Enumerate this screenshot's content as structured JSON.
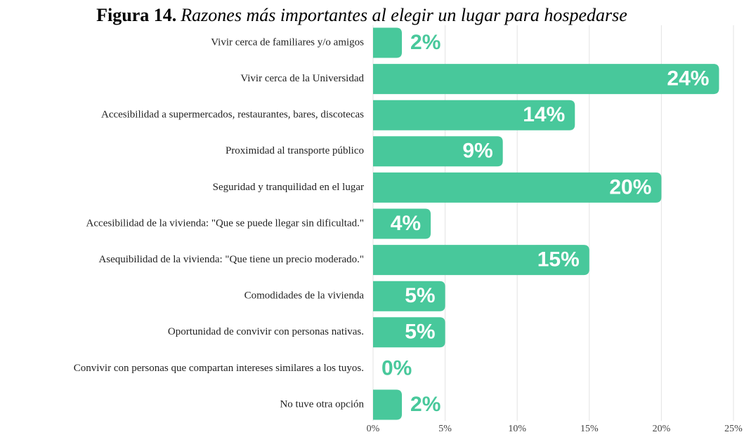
{
  "chart_data": {
    "type": "barh",
    "figure_label": "Figura 14.",
    "title": "Razones más importantes al elegir un lugar para hospedarse",
    "categories": [
      "Vivir cerca de familiares y/o amigos",
      "Vivir cerca de la Universidad",
      "Accesibilidad a supermercados, restaurantes, bares, discotecas",
      "Proximidad al transporte público",
      "Seguridad y tranquilidad en el lugar",
      "Accesibilidad de la vivienda: \"Que se puede llegar sin dificultad.\"",
      "Asequibilidad de la vivienda: \"Que tiene un precio moderado.\"",
      "Comodidades de la vivienda",
      "Oportunidad de convivir con personas nativas.",
      "Convivir con personas que compartan intereses similares a los tuyos.",
      "No tuve otra opción"
    ],
    "values": [
      2,
      24,
      14,
      9,
      20,
      4,
      15,
      5,
      5,
      0,
      2
    ],
    "value_labels": [
      "2%",
      "24%",
      "14%",
      "9%",
      "20%",
      "4%",
      "15%",
      "5%",
      "5%",
      "0%",
      "2%"
    ],
    "color": "#48c89b",
    "xlim": [
      0,
      25
    ],
    "xticks": [
      {
        "value": 0,
        "label": "0%"
      },
      {
        "value": 5,
        "label": "5%"
      },
      {
        "value": 10,
        "label": "10%"
      },
      {
        "value": 15,
        "label": "15%"
      },
      {
        "value": 20,
        "label": "20%"
      },
      {
        "value": 25,
        "label": "25%"
      }
    ],
    "grid": true
  }
}
